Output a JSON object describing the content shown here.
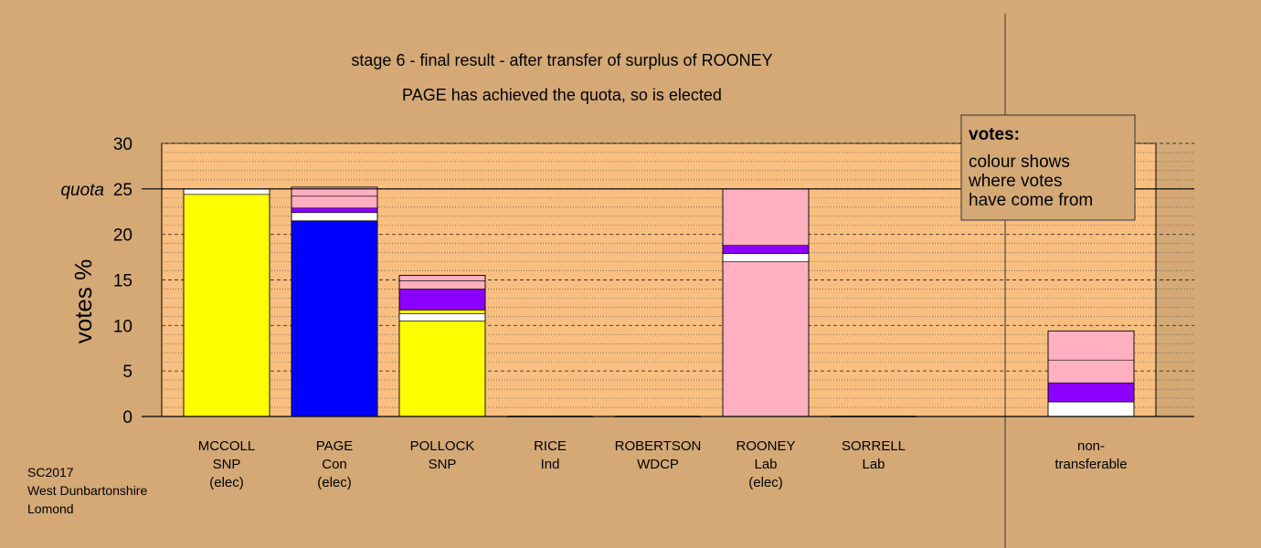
{
  "chart_data": {
    "type": "bar",
    "title": "stage 6 - final result - after transfer of surplus of ROONEY",
    "subtitle": "PAGE has achieved the quota, so is elected",
    "ylabel": "votes %",
    "ylim": [
      0,
      30
    ],
    "yticks": [
      "0",
      "5",
      "10",
      "15",
      "20",
      "25",
      "30"
    ],
    "quota": {
      "value": 25,
      "label": "quota"
    },
    "legend": {
      "title": "votes:",
      "lines": [
        "colour shows",
        "where votes",
        "have come from"
      ],
      "position": "top-right"
    },
    "colors": {
      "snp": "#ffff00",
      "con": "#0000ff",
      "lab": "#ffb0c0",
      "ind": "#ffffff",
      "wdcp": "#8b00ff",
      "background": "#d4a976",
      "plot": "#f9bf80"
    },
    "candidates": [
      {
        "name": "MCCOLL",
        "party": "SNP",
        "status": "(elec)",
        "segments": [
          {
            "source": "SNP",
            "value": 24.4,
            "color": "#ffff00"
          },
          {
            "source": "Ind",
            "value": 0.6,
            "color": "#ffffff"
          }
        ]
      },
      {
        "name": "PAGE",
        "party": "Con",
        "status": "(elec)",
        "segments": [
          {
            "source": "Con",
            "value": 21.5,
            "color": "#0000ff"
          },
          {
            "source": "Ind",
            "value": 0.9,
            "color": "#ffffff"
          },
          {
            "source": "WDCP",
            "value": 0.5,
            "color": "#8b00ff"
          },
          {
            "source": "Lab",
            "value": 1.3,
            "color": "#ffb0c0"
          },
          {
            "source": "Lab",
            "value": 1.0,
            "color": "#ffb0c0"
          }
        ]
      },
      {
        "name": "POLLOCK",
        "party": "SNP",
        "status": "",
        "segments": [
          {
            "source": "SNP",
            "value": 10.5,
            "color": "#ffff00"
          },
          {
            "source": "Ind",
            "value": 0.8,
            "color": "#ffffff"
          },
          {
            "source": "SNP",
            "value": 0.4,
            "color": "#ffff00"
          },
          {
            "source": "WDCP",
            "value": 2.3,
            "color": "#8b00ff"
          },
          {
            "source": "Lab",
            "value": 0.9,
            "color": "#ffb0c0"
          },
          {
            "source": "Lab",
            "value": 0.6,
            "color": "#ffb0c0"
          }
        ]
      },
      {
        "name": "RICE",
        "party": "Ind",
        "status": "",
        "segments": []
      },
      {
        "name": "ROBERTSON",
        "party": "WDCP",
        "status": "",
        "segments": []
      },
      {
        "name": "ROONEY",
        "party": "Lab",
        "status": "(elec)",
        "segments": [
          {
            "source": "Lab",
            "value": 17.0,
            "color": "#ffb0c0"
          },
          {
            "source": "Ind",
            "value": 0.9,
            "color": "#ffffff"
          },
          {
            "source": "WDCP",
            "value": 0.9,
            "color": "#8b00ff"
          },
          {
            "source": "Lab",
            "value": 6.2,
            "color": "#ffb0c0"
          }
        ]
      },
      {
        "name": "SORRELL",
        "party": "Lab",
        "status": "",
        "segments": []
      }
    ],
    "nontransferable": {
      "label": [
        "non-",
        "transferable"
      ],
      "segments": [
        {
          "source": "Ind",
          "value": 1.6,
          "color": "#ffffff"
        },
        {
          "source": "WDCP",
          "value": 2.1,
          "color": "#8b00ff"
        },
        {
          "source": "Lab",
          "value": 2.5,
          "color": "#ffb0c0"
        },
        {
          "source": "Lab",
          "value": 3.2,
          "color": "#ffb0c0"
        }
      ]
    }
  },
  "footnote": {
    "line1": "SC2017",
    "line2": "West Dunbartonshire",
    "line3": "Lomond"
  }
}
